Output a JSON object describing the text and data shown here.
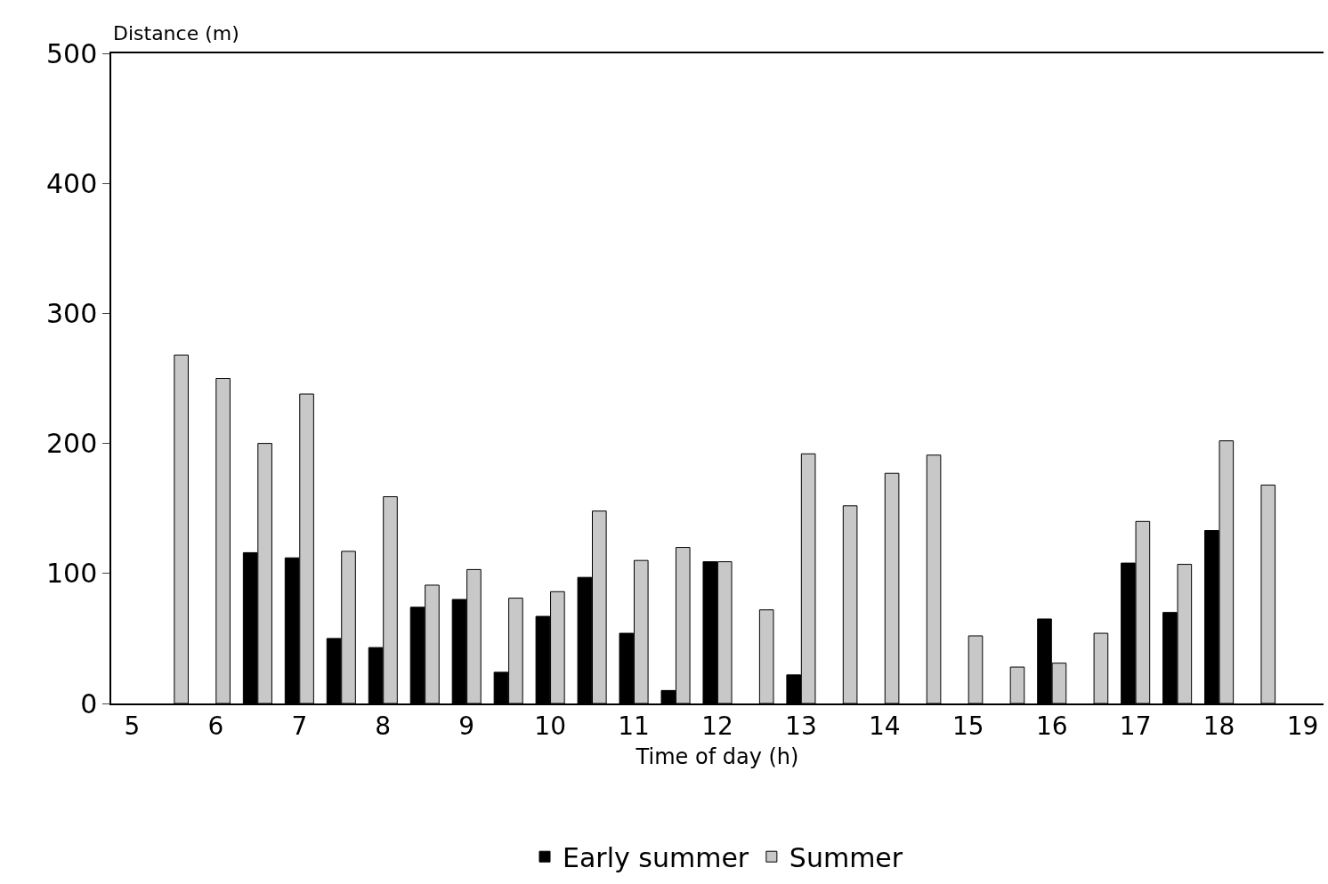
{
  "chart_data": {
    "type": "bar",
    "xlabel": "Time of day (h)",
    "ylabel": "Distance (m)",
    "categories": [
      "5",
      null,
      "6",
      null,
      "7",
      null,
      "8",
      null,
      "9",
      null,
      "10",
      null,
      "11",
      null,
      "12",
      null,
      "13",
      null,
      "14",
      null,
      "15",
      null,
      "16",
      null,
      "17",
      null,
      "18",
      null,
      "19"
    ],
    "series": [
      {
        "name": "Early summer",
        "color": "#000000",
        "values": [
          null,
          null,
          null,
          116,
          112,
          50,
          43,
          74,
          80,
          24,
          67,
          97,
          54,
          10,
          109,
          null,
          22,
          null,
          null,
          null,
          null,
          null,
          65,
          null,
          108,
          70,
          133,
          null,
          null
        ]
      },
      {
        "name": "Summer",
        "color": "#c8c8c8",
        "values": [
          null,
          268,
          250,
          200,
          238,
          117,
          159,
          91,
          103,
          81,
          86,
          148,
          110,
          120,
          109,
          72,
          192,
          152,
          177,
          191,
          52,
          28,
          31,
          54,
          140,
          107,
          202,
          168,
          null
        ]
      }
    ],
    "ylim": [
      0,
      500
    ],
    "yticks": [
      0,
      100,
      200,
      300,
      400,
      500
    ],
    "grid": false,
    "legend": "bottom"
  }
}
